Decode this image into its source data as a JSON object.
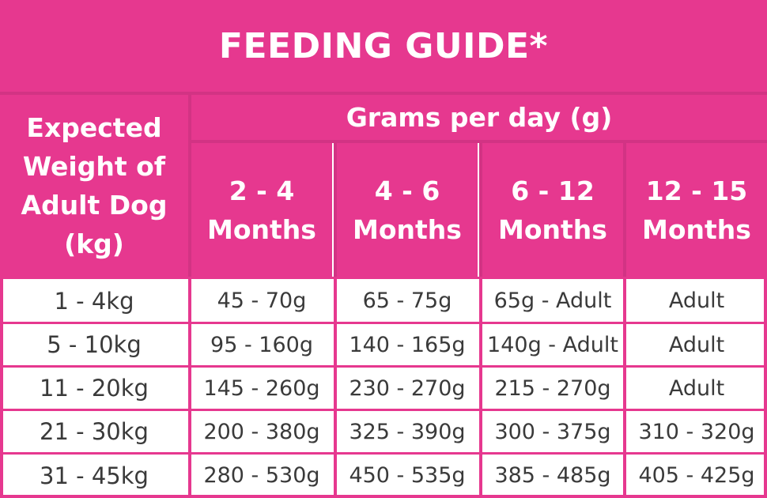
{
  "title": "FEEDING GUIDE*",
  "header": {
    "weight_label": [
      "Expected",
      "Weight of",
      "Adult Dog",
      "(kg)"
    ],
    "grams_label": "Grams per day (g)",
    "age_groups": [
      [
        "2 - 4",
        "Months"
      ],
      [
        "4 - 6",
        "Months"
      ],
      [
        "6 - 12",
        "Months"
      ],
      [
        "12 - 15",
        "Months"
      ]
    ]
  },
  "rows": [
    {
      "weight": "1 - 4kg",
      "values": [
        "45 - 70g",
        "65 - 75g",
        "65g - Adult",
        "Adult"
      ]
    },
    {
      "weight": "5 - 10kg",
      "values": [
        "95 - 160g",
        "140 - 165g",
        "140g - Adult",
        "Adult"
      ]
    },
    {
      "weight": "11 - 20kg",
      "values": [
        "145 - 260g",
        "230 - 270g",
        "215 - 270g",
        "Adult"
      ]
    },
    {
      "weight": "21 - 30kg",
      "values": [
        "200 - 380g",
        "325 - 390g",
        "300 - 375g",
        "310 - 320g"
      ]
    },
    {
      "weight": "31 - 45kg",
      "values": [
        "280 - 530g",
        "450 - 535g",
        "385 - 485g",
        "405 - 425g"
      ]
    }
  ],
  "colors": {
    "accent": "#e6388f",
    "text": "#3a3a3a",
    "header_text": "#ffffff"
  }
}
